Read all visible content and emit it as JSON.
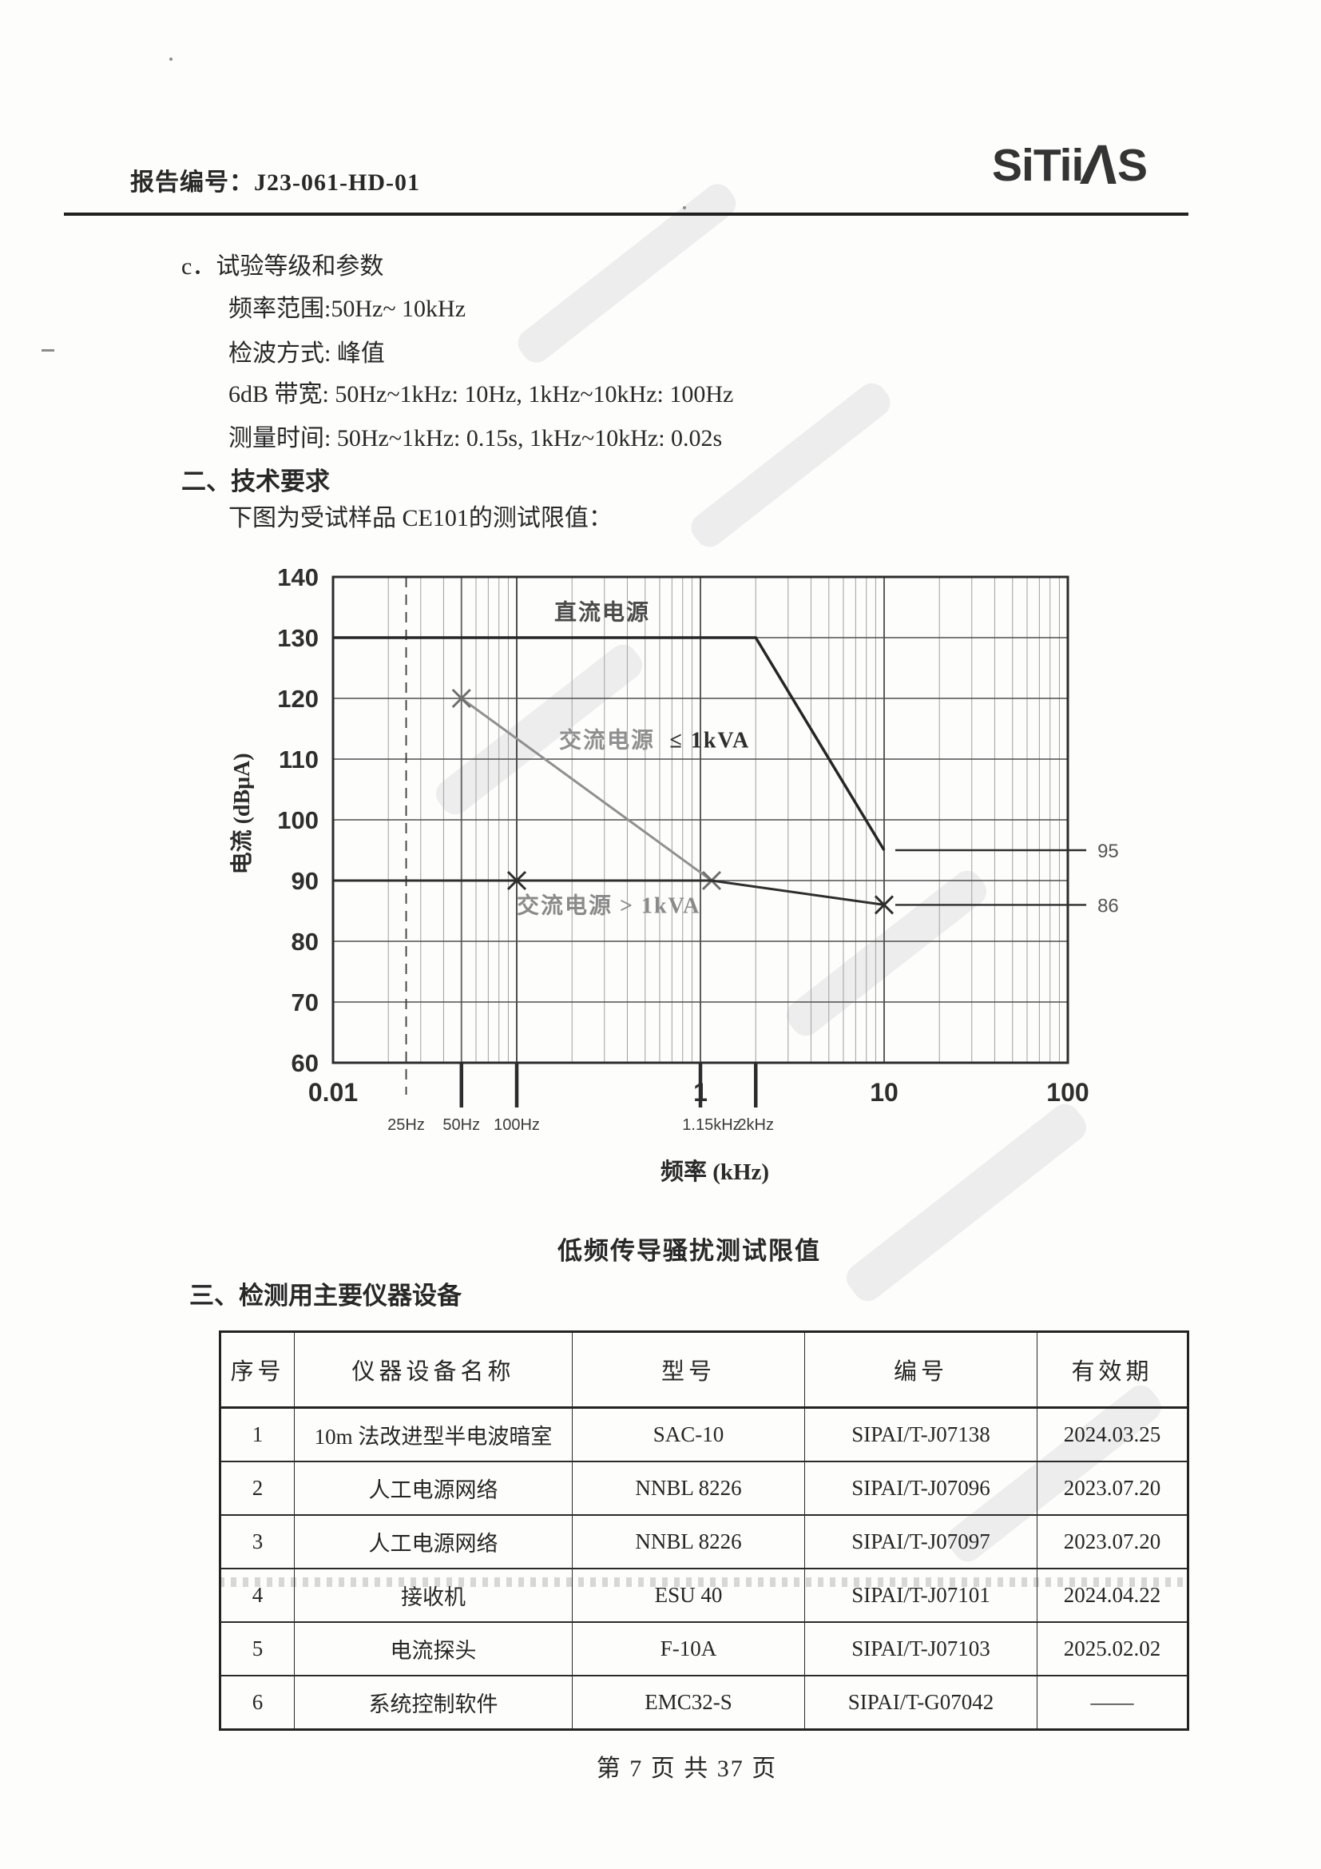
{
  "header": {
    "report_label": "报告编号：",
    "report_no": "J23-061-HD-01",
    "logo_part1": "SiTii",
    "logo_a": "Λ",
    "logo_part2": "S",
    "logo_full": "SiTiiAS"
  },
  "body": {
    "item_c": "c．试验等级和参数",
    "param_lines": [
      "频率范围:50Hz~ 10kHz",
      "检波方式: 峰值",
      "6dB 带宽: 50Hz~1kHz: 10Hz, 1kHz~10kHz: 100Hz",
      "测量时间: 50Hz~1kHz: 0.15s, 1kHz~10kHz: 0.02s"
    ],
    "section2_title": "二、技术要求",
    "section2_intro": "下图为受试样品 CE101的测试限值：",
    "section3_title": "三、检测用主要仪器设备",
    "footer": "第 7 页  共 37 页"
  },
  "chart_data": {
    "type": "line",
    "title": "低频传导骚扰测试限值",
    "caption": "低频传导骚扰测试限值",
    "xlabel": "频率 (kHz)",
    "ylabel": "电流 (dBμA)",
    "x_scale": "log",
    "xlim": [
      0.01,
      100
    ],
    "ylim": [
      60,
      140
    ],
    "grid": true,
    "y_ticks": [
      140,
      130,
      120,
      110,
      100,
      90,
      80,
      70,
      60
    ],
    "x_major_ticks": [
      {
        "label": "0.01",
        "kHz": 0.01
      },
      {
        "label": "1",
        "kHz": 1
      },
      {
        "label": "10",
        "kHz": 10
      },
      {
        "label": "100",
        "kHz": 100
      }
    ],
    "x_minor_labels": [
      {
        "label": "25Hz",
        "kHz": 0.025
      },
      {
        "label": "50Hz",
        "kHz": 0.05
      },
      {
        "label": "100Hz",
        "kHz": 0.1
      },
      {
        "label": "1.15kHz",
        "kHz": 1.15
      },
      {
        "label": "2kHz",
        "kHz": 2
      }
    ],
    "tick_marks_kHz": [
      0.05,
      0.1,
      1,
      2
    ],
    "dashed_vline_kHz": 0.025,
    "emphasized_vlines_kHz": [
      0.05,
      0.1
    ],
    "series": [
      {
        "name": "直流电源",
        "color": "#262626",
        "width": 3.5,
        "points": [
          [
            0.01,
            130
          ],
          [
            2,
            130
          ],
          [
            10,
            95
          ]
        ],
        "markers": [],
        "marker_color": "#262626"
      },
      {
        "name": "交流电源 ≤1kVA",
        "color": "#909090",
        "width": 3,
        "points": [
          [
            0.05,
            120
          ],
          [
            1.15,
            90
          ]
        ],
        "markers": [
          [
            0.05,
            120
          ],
          [
            1.15,
            90
          ]
        ],
        "marker_color": "#6f6f6f"
      },
      {
        "name": "交流电源 > 1kVA",
        "color": "#2e2e2e",
        "width": 3,
        "points": [
          [
            0.01,
            90
          ],
          [
            1.15,
            90
          ],
          [
            10,
            86
          ]
        ],
        "markers": [
          [
            0.1,
            90
          ],
          [
            10,
            86
          ]
        ],
        "marker_color": "#2e2e2e"
      }
    ],
    "level_lines": [
      {
        "dB": 95,
        "from_kHz": 11.5,
        "to_kHz": 126,
        "label": "95"
      },
      {
        "dB": 86,
        "from_kHz": 11.5,
        "to_kHz": 126,
        "label": "86"
      }
    ],
    "annotations": [
      {
        "text": "直流电源",
        "kHz": 0.16,
        "dB": 134.3,
        "color": "#4b4b4b"
      },
      {
        "text": "交流电源",
        "kHz": 0.17,
        "dB": 113.2,
        "color": "#8f8f8f"
      },
      {
        "text": "≤ 1kVA",
        "kHz": 0.68,
        "dB": 113.2,
        "color": "#2e2e2e"
      },
      {
        "text": "交流电源 > 1kVA",
        "kHz": 0.1,
        "dB": 86.0,
        "color": "#8a8a8a"
      }
    ]
  },
  "table": {
    "headers": [
      "序号",
      "仪器设备名称",
      "型号",
      "编号",
      "有效期"
    ],
    "rows": [
      [
        "1",
        "10m 法改进型半电波暗室",
        "SAC-10",
        "SIPAI/T-J07138",
        "2024.03.25"
      ],
      [
        "2",
        "人工电源网络",
        "NNBL 8226",
        "SIPAI/T-J07096",
        "2023.07.20"
      ],
      [
        "3",
        "人工电源网络",
        "NNBL 8226",
        "SIPAI/T-J07097",
        "2023.07.20"
      ],
      [
        "4",
        "接收机",
        "ESU 40",
        "SIPAI/T-J07101",
        "2024.04.22"
      ],
      [
        "5",
        "电流探头",
        "F-10A",
        "SIPAI/T-J07103",
        "2025.02.02"
      ],
      [
        "6",
        "系统控制软件",
        "EMC32-S",
        "SIPAI/T-G07042",
        "——"
      ]
    ]
  }
}
